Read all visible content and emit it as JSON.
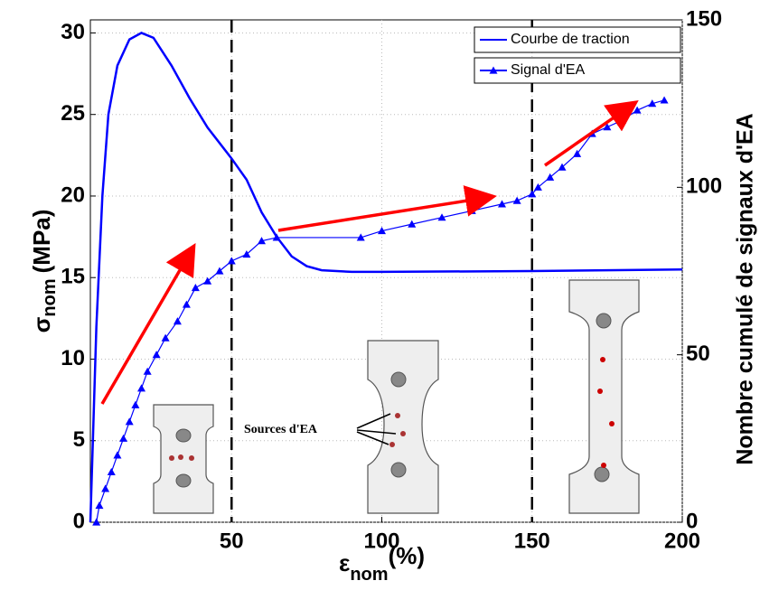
{
  "chart_data": {
    "type": "line",
    "xlabel": {
      "symbol": "ε",
      "subscript": "nom",
      "unit": "(%)"
    },
    "ylabel": {
      "symbol": "σ",
      "subscript": "nom",
      "unit": "(MPa)"
    },
    "y2label": "Nombre cumulé de signaux d'EA",
    "annotation": "Sources d'EA",
    "xlim": [
      3,
      200
    ],
    "xticks": [
      50,
      100,
      150,
      200
    ],
    "ylim": [
      0,
      30.8
    ],
    "yticks": [
      0,
      5,
      10,
      15,
      20,
      25,
      30
    ],
    "y2lim": [
      0,
      150
    ],
    "y2ticks": [
      0,
      50,
      100,
      150
    ],
    "grid": true,
    "legend": "upper right",
    "vlines": [
      50,
      150
    ],
    "series": [
      {
        "name": "Courbe de traction",
        "color": "#0000ff",
        "x": [
          3,
          4,
          5,
          7,
          9,
          12,
          16,
          20,
          24,
          30,
          36,
          42,
          50,
          55,
          60,
          65,
          70,
          75,
          80,
          90,
          100,
          150,
          200
        ],
        "values": [
          0,
          6,
          12,
          20,
          25,
          28,
          29.6,
          30,
          29.7,
          28,
          26,
          24.2,
          22.3,
          21,
          19,
          17.5,
          16.3,
          15.7,
          15.45,
          15.35,
          15.35,
          15.4,
          15.5
        ]
      },
      {
        "name": "Signal d'EA",
        "color": "#0000ff",
        "axis": "y2",
        "marker": "triangle",
        "x": [
          5,
          6,
          8,
          10,
          12,
          14,
          16,
          18,
          20,
          22,
          25,
          28,
          32,
          35,
          38,
          42,
          46,
          50,
          55,
          60,
          65,
          93,
          100,
          110,
          120,
          130,
          140,
          145,
          150,
          152,
          156,
          160,
          165,
          170,
          175,
          180,
          185,
          190,
          194
        ],
        "values": [
          0,
          5,
          10,
          15,
          20,
          25,
          30,
          35,
          40,
          45,
          50,
          55,
          60,
          65,
          70,
          72,
          75,
          78,
          80,
          84,
          85,
          85,
          87,
          89,
          91,
          93,
          95,
          96,
          98,
          100,
          103,
          106,
          110,
          116,
          118,
          120,
          123,
          125,
          126
        ]
      }
    ]
  }
}
